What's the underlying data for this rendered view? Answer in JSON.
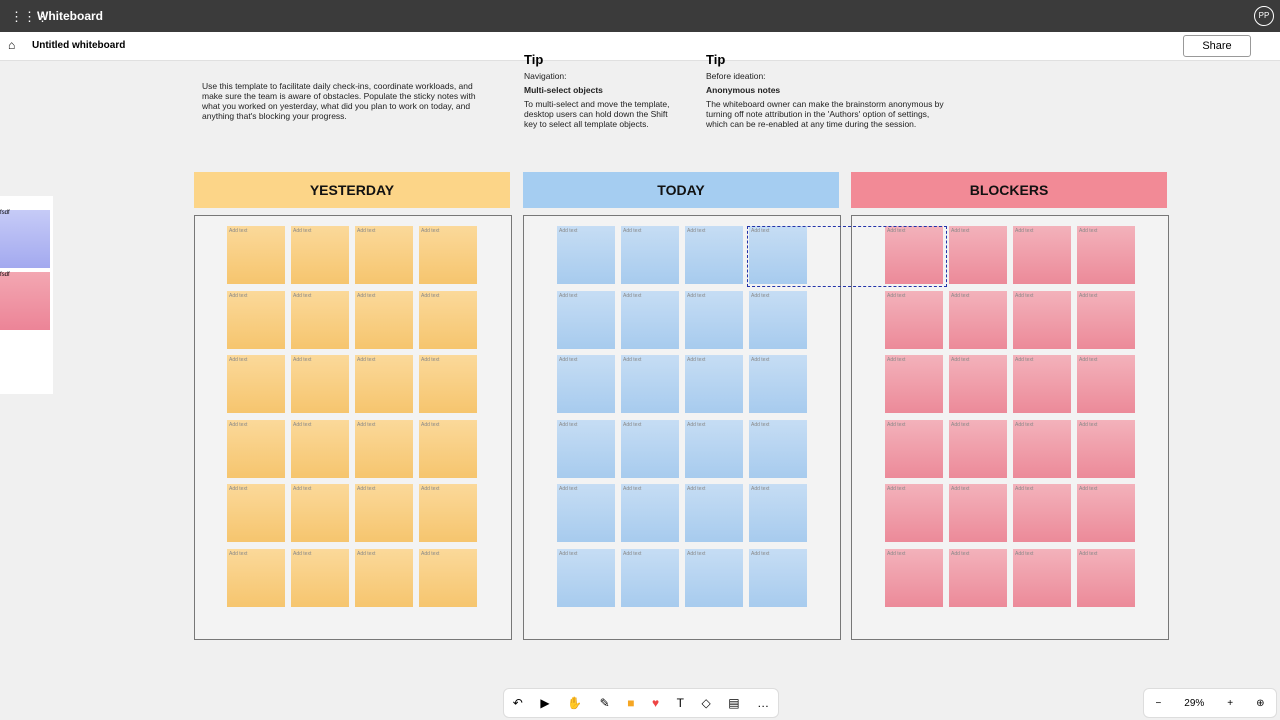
{
  "app_bar": {
    "title": "Whiteboard",
    "avatar": "PP"
  },
  "toolbar": {
    "doc_title": "Untitled whiteboard",
    "share": "Share"
  },
  "intro": "Use this template to facilitate daily check-ins, coordinate workloads, and make sure the team is aware of obstacles. Populate the sticky notes with what you worked on yesterday, what did you plan to work on today, and anything that's blocking your progress.",
  "tips": [
    {
      "title": "Tip",
      "kicker": "Navigation:",
      "heading": "Multi-select objects",
      "body": "To multi-select and move the template, desktop users can hold down the Shift key to select all template objects."
    },
    {
      "title": "Tip",
      "kicker": "Before ideation:",
      "heading": "Anonymous notes",
      "body": "The whiteboard owner can make the brainstorm anonymous by turning off note attribution in the 'Authors' option of settings, which can be re-enabled at any time during the session."
    }
  ],
  "columns": [
    {
      "title": "YESTERDAY",
      "note_placeholder": "Add text"
    },
    {
      "title": "TODAY",
      "note_placeholder": "Add text"
    },
    {
      "title": "BLOCKERS",
      "note_placeholder": "Add text"
    }
  ],
  "side_notes": [
    "fsdf",
    "fsdf"
  ],
  "zoom": "29%"
}
